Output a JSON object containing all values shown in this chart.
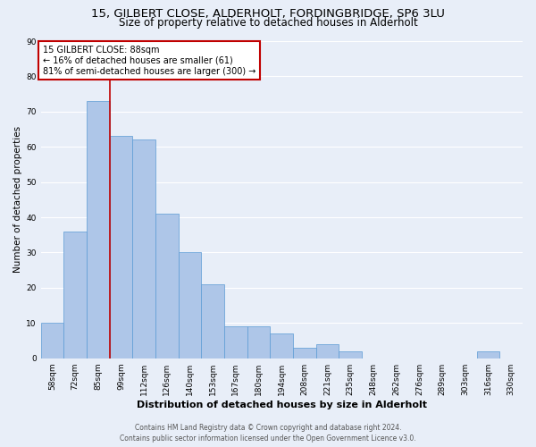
{
  "title1": "15, GILBERT CLOSE, ALDERHOLT, FORDINGBRIDGE, SP6 3LU",
  "title2": "Size of property relative to detached houses in Alderholt",
  "xlabel": "Distribution of detached houses by size in Alderholt",
  "ylabel": "Number of detached properties",
  "categories": [
    "58sqm",
    "72sqm",
    "85sqm",
    "99sqm",
    "112sqm",
    "126sqm",
    "140sqm",
    "153sqm",
    "167sqm",
    "180sqm",
    "194sqm",
    "208sqm",
    "221sqm",
    "235sqm",
    "248sqm",
    "262sqm",
    "276sqm",
    "289sqm",
    "303sqm",
    "316sqm",
    "330sqm"
  ],
  "values": [
    10,
    36,
    73,
    63,
    62,
    41,
    30,
    21,
    9,
    9,
    7,
    3,
    4,
    2,
    0,
    0,
    0,
    0,
    0,
    2,
    0
  ],
  "bar_color": "#aec6e8",
  "bar_edge_color": "#5b9bd5",
  "vline_color": "#c00000",
  "vline_pos": 2.5,
  "annotation_title": "15 GILBERT CLOSE: 88sqm",
  "annotation_line2": "← 16% of detached houses are smaller (61)",
  "annotation_line3": "81% of semi-detached houses are larger (300) →",
  "annotation_box_color": "#c00000",
  "ylim": [
    0,
    90
  ],
  "yticks": [
    0,
    10,
    20,
    30,
    40,
    50,
    60,
    70,
    80,
    90
  ],
  "footer1": "Contains HM Land Registry data © Crown copyright and database right 2024.",
  "footer2": "Contains public sector information licensed under the Open Government Licence v3.0.",
  "bg_color": "#e8eef8",
  "grid_color": "#ffffff",
  "title1_fontsize": 9.5,
  "title2_fontsize": 8.5,
  "xlabel_fontsize": 8,
  "ylabel_fontsize": 7.5,
  "tick_fontsize": 6.5,
  "ann_fontsize": 7.0,
  "footer_fontsize": 5.5
}
